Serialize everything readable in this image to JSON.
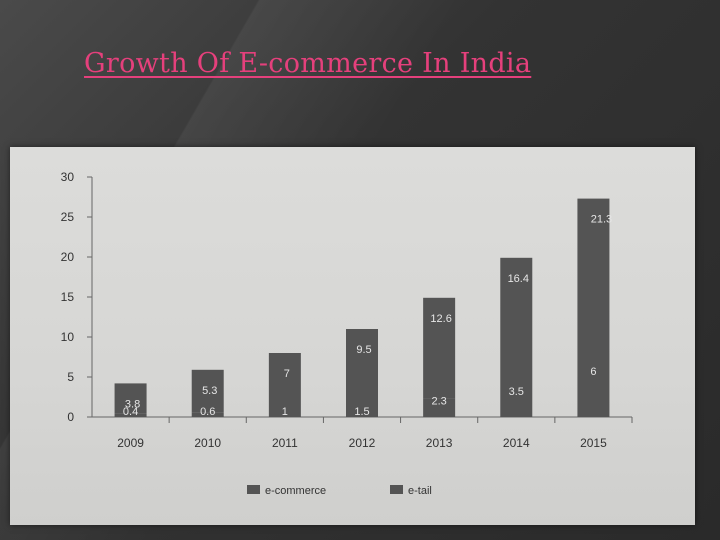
{
  "slide": {
    "title": "Growth Of E-commerce In India"
  },
  "chart_data": {
    "type": "bar",
    "categories": [
      "2009",
      "2010",
      "2011",
      "2012",
      "2013",
      "2014",
      "2015"
    ],
    "series": [
      {
        "name": "e-commerce",
        "values": [
          3.8,
          5.3,
          7,
          9.5,
          12.6,
          16.4,
          21.3
        ],
        "labels": [
          "3.8",
          "5.3",
          "7",
          "9.5",
          "12.6",
          "16.4",
          "21.3"
        ]
      },
      {
        "name": "e-tail",
        "values": [
          0.4,
          0.6,
          1,
          1.5,
          2.3,
          3.5,
          6
        ],
        "labels": [
          "0.4",
          "0.6",
          "1",
          "1.5",
          "2.3",
          "3.5",
          "6"
        ]
      }
    ],
    "stacked": true,
    "ylim": [
      0,
      30
    ],
    "yticks": [
      0,
      5,
      10,
      15,
      20,
      25,
      30
    ],
    "grid": false,
    "legend": "bottom",
    "bar_color": "#545454"
  }
}
